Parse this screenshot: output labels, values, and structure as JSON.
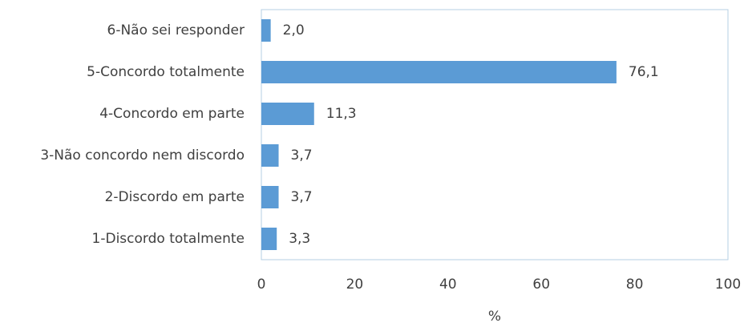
{
  "chart_data": {
    "type": "bar",
    "orientation": "horizontal",
    "categories": [
      "6-Não sei responder",
      "5-Concordo totalmente",
      "4-Concordo em parte",
      "3-Não concordo nem discordo",
      "2-Discordo em parte",
      "1-Discordo totalmente"
    ],
    "values": [
      2.0,
      76.1,
      11.3,
      3.7,
      3.7,
      3.3
    ],
    "value_labels": [
      "2,0",
      "76,1",
      "11,3",
      "3,7",
      "3,7",
      "3,3"
    ],
    "color": "#5b9bd5",
    "xlabel": "%",
    "xlim": [
      0,
      100
    ],
    "xticks": [
      0,
      20,
      40,
      60,
      80,
      100
    ],
    "grid": false
  }
}
